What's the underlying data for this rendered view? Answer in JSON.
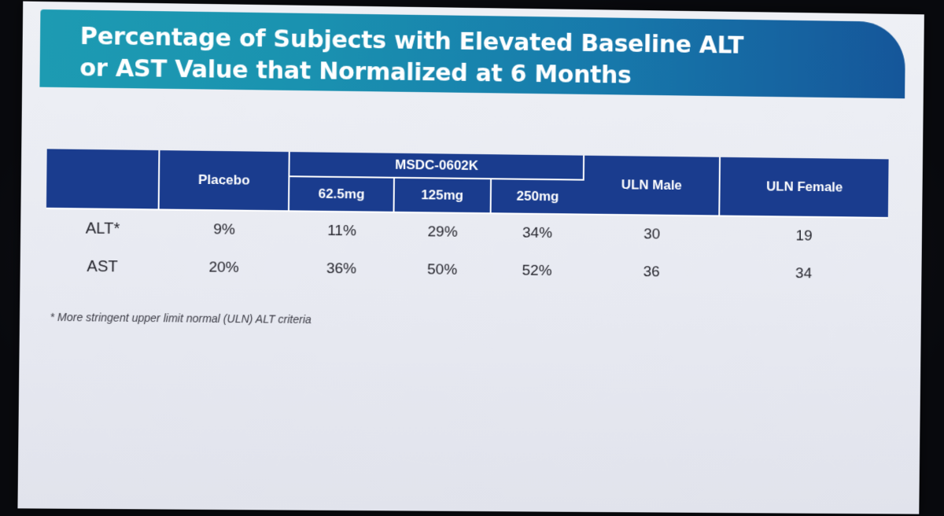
{
  "title": {
    "line1": "Percentage of Subjects with Elevated Baseline ALT",
    "line2": "or AST Value that Normalized at 6 Months"
  },
  "table": {
    "headers": {
      "placebo": "Placebo",
      "group": "MSDC-0602K",
      "dose_1": "62.5mg",
      "dose_2": "125mg",
      "dose_3": "250mg",
      "uln_male": "ULN Male",
      "uln_female": "ULN Female"
    },
    "rows": [
      {
        "label": "ALT*",
        "placebo": "9%",
        "dose_1": "11%",
        "dose_2": "29%",
        "dose_3": "34%",
        "uln_male": "30",
        "uln_female": "19"
      },
      {
        "label": "AST",
        "placebo": "20%",
        "dose_1": "36%",
        "dose_2": "50%",
        "dose_3": "52%",
        "uln_male": "36",
        "uln_female": "34"
      }
    ]
  },
  "footnote": "* More stringent upper limit normal (ULN) ALT criteria",
  "colors": {
    "title_gradient_start": "#1d9bb2",
    "title_gradient_end": "#15569a",
    "table_header": "#1a3c8e",
    "slide_background": "#eef0f5"
  }
}
